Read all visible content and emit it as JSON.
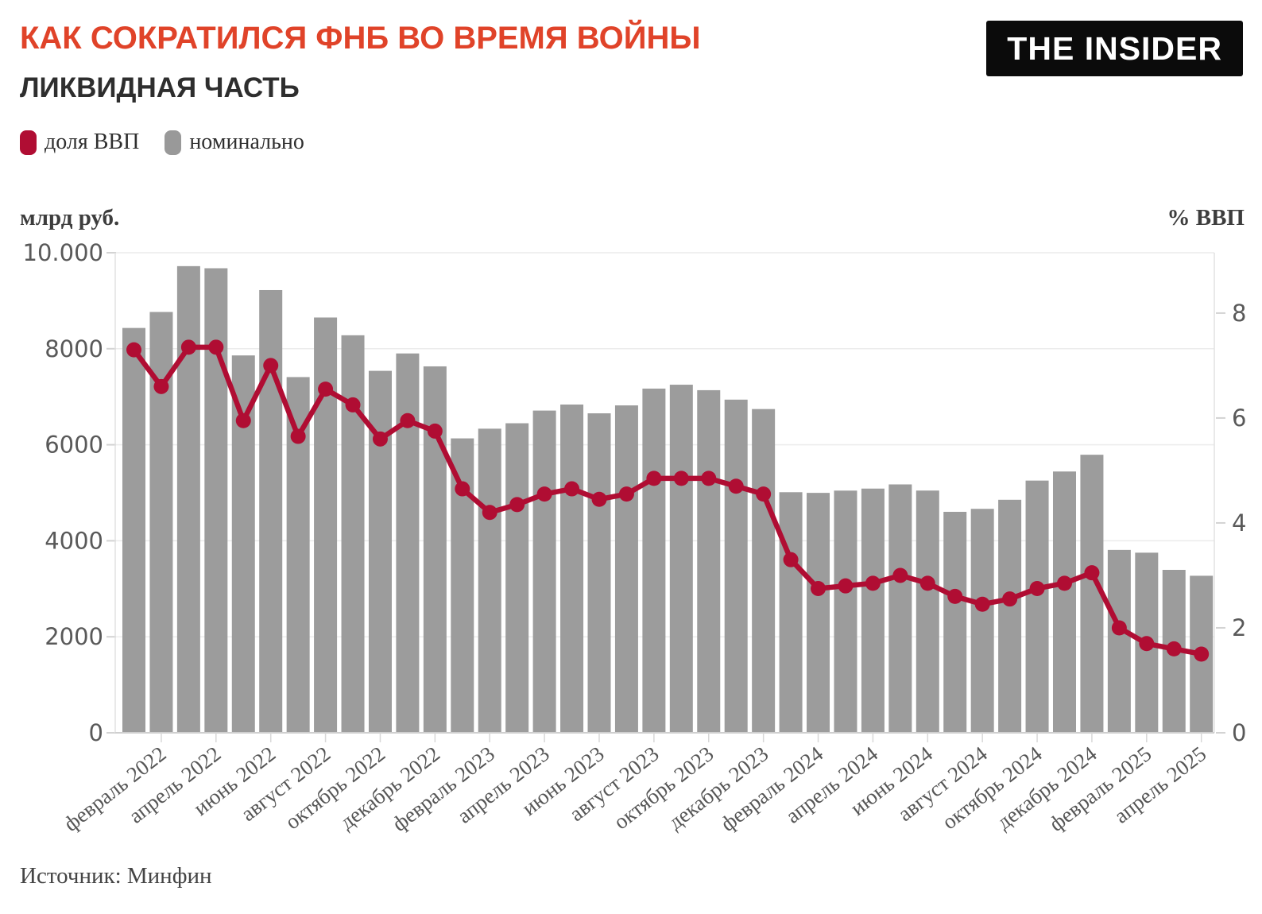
{
  "header": {
    "title": "КАК СОКРАТИЛСЯ ФНБ ВО ВРЕМЯ ВОЙНЫ",
    "subtitle": "ЛИКВИДНАЯ ЧАСТЬ",
    "logo": "THE INSIDER"
  },
  "legend": [
    {
      "label": "доля ВВП",
      "color": "#b00d33"
    },
    {
      "label": "номинально",
      "color": "#999999"
    }
  ],
  "axes": {
    "left_title": "млрд руб.",
    "right_title": "% ВВП"
  },
  "source": "Источник: Минфин",
  "chart_data": {
    "type": "bar+line",
    "title": "Как сократился ФНБ во время войны — ликвидная часть",
    "legend_position": "top-left",
    "grid": "horizontal",
    "x": [
      "январь 2022",
      "февраль 2022",
      "март 2022",
      "апрель 2022",
      "май 2022",
      "июнь 2022",
      "июль 2022",
      "август 2022",
      "сентябрь 2022",
      "октябрь 2022",
      "ноябрь 2022",
      "декабрь 2022",
      "январь 2023",
      "февраль 2023",
      "март 2023",
      "апрель 2023",
      "май 2023",
      "июнь 2023",
      "июль 2023",
      "август 2023",
      "сентябрь 2023",
      "октябрь 2023",
      "ноябрь 2023",
      "декабрь 2023",
      "январь 2024",
      "февраль 2024",
      "март 2024",
      "апрель 2024",
      "май 2024",
      "июнь 2024",
      "июль 2024",
      "август 2024",
      "сентябрь 2024",
      "октябрь 2024",
      "ноябрь 2024",
      "декабрь 2024",
      "январь 2025",
      "февраль 2025",
      "март 2025",
      "апрель 2025"
    ],
    "x_tick_labels": [
      "февраль 2022",
      "апрель 2022",
      "июнь 2022",
      "август 2022",
      "октябрь 2022",
      "декабрь 2022",
      "февраль 2023",
      "апрель 2023",
      "июнь 2023",
      "август 2023",
      "октябрь 2023",
      "декабрь 2023",
      "февраль 2024",
      "апрель 2024",
      "июнь 2024",
      "август 2024",
      "октябрь 2024",
      "декабрь 2024",
      "февраль 2025",
      "апрель 2025"
    ],
    "series": [
      {
        "name": "номинально",
        "type": "bar",
        "axis": "left",
        "unit": "млрд руб.",
        "color": "#9c9c9c",
        "values": [
          8433,
          8766,
          9721,
          9677,
          7861,
          9222,
          7410,
          8651,
          8281,
          7540,
          7902,
          7633,
          6133,
          6335,
          6448,
          6712,
          6838,
          6655,
          6820,
          7170,
          7251,
          7137,
          6940,
          6744,
          5012,
          4998,
          5045,
          5087,
          5174,
          5046,
          4603,
          4665,
          4854,
          5254,
          5443,
          5792,
          3810,
          3752,
          3394,
          3271
        ]
      },
      {
        "name": "доля ВВП",
        "type": "line",
        "axis": "right",
        "unit": "% ВВП",
        "color": "#b00d33",
        "values": [
          7.3,
          6.6,
          7.35,
          7.35,
          5.95,
          7.0,
          5.65,
          6.55,
          6.25,
          5.6,
          5.95,
          5.75,
          4.65,
          4.2,
          4.35,
          4.55,
          4.65,
          4.45,
          4.55,
          4.85,
          4.85,
          4.85,
          4.7,
          4.55,
          3.3,
          2.75,
          2.8,
          2.85,
          3.0,
          2.85,
          2.6,
          2.45,
          2.55,
          2.75,
          2.85,
          3.05,
          2.0,
          1.7,
          1.6,
          1.5
        ]
      }
    ],
    "left_axis": {
      "title": "млрд руб.",
      "range": [
        0,
        10000
      ],
      "tick_values": [
        0,
        2000,
        4000,
        6000,
        8000,
        10000
      ],
      "tick_labels": [
        "0",
        "2000",
        "4000",
        "6000",
        "8000",
        "10.000"
      ]
    },
    "right_axis": {
      "title": "% ВВП",
      "range": [
        0,
        9.15
      ],
      "tick_values": [
        0,
        2,
        4,
        6,
        8
      ],
      "tick_labels": [
        "0",
        "2",
        "4",
        "6",
        "8"
      ]
    }
  }
}
